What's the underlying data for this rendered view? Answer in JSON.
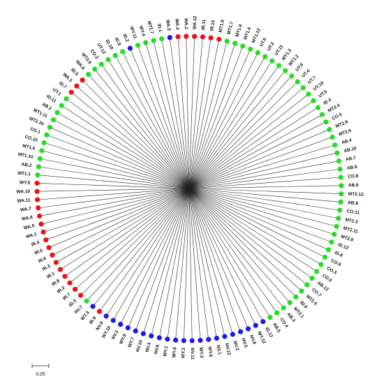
{
  "colors": {
    "green": "#22dd22",
    "red": "#ee1111",
    "blue": "#1a1aee",
    "branch": "#222222"
  },
  "scale_bar": {
    "label": "0.05"
  },
  "leaves": [
    {
      "label": "WA.12",
      "group": "red"
    },
    {
      "label": "IR.11",
      "group": "red"
    },
    {
      "label": "IR.10",
      "group": "red"
    },
    {
      "label": "MT1.8",
      "group": "red"
    },
    {
      "label": "MT1.7",
      "group": "green"
    },
    {
      "label": "MT1.9",
      "group": "green"
    },
    {
      "label": "MT1.4",
      "group": "green"
    },
    {
      "label": "MT1.12",
      "group": "green"
    },
    {
      "label": "UT.6",
      "group": "green"
    },
    {
      "label": "UT.2",
      "group": "green"
    },
    {
      "label": "UT.11",
      "group": "green"
    },
    {
      "label": "MT1.3",
      "group": "green"
    },
    {
      "label": "MT1.2",
      "group": "green"
    },
    {
      "label": "UT.9",
      "group": "green"
    },
    {
      "label": "UT.4",
      "group": "green"
    },
    {
      "label": "UT.7",
      "group": "green"
    },
    {
      "label": "UT.10",
      "group": "green"
    },
    {
      "label": "UT.5",
      "group": "green"
    },
    {
      "label": "ID.4",
      "group": "green"
    },
    {
      "label": "MT2.4",
      "group": "green"
    },
    {
      "label": "CO.5",
      "group": "green"
    },
    {
      "label": "MT2.9",
      "group": "green"
    },
    {
      "label": "MT2.6",
      "group": "green"
    },
    {
      "label": "AB.4",
      "group": "green"
    },
    {
      "label": "AB.10",
      "group": "green"
    },
    {
      "label": "AB.7",
      "group": "green"
    },
    {
      "label": "AB.6",
      "group": "green"
    },
    {
      "label": "CO.8",
      "group": "green"
    },
    {
      "label": "AB.8",
      "group": "green"
    },
    {
      "label": "MT2.12",
      "group": "green"
    },
    {
      "label": "AB.9",
      "group": "green"
    },
    {
      "label": "CO.11",
      "group": "green"
    },
    {
      "label": "MT2.3",
      "group": "green"
    },
    {
      "label": "MT2.11",
      "group": "green"
    },
    {
      "label": "MT2.8",
      "group": "green"
    },
    {
      "label": "ID.12",
      "group": "green"
    },
    {
      "label": "ID.8",
      "group": "green"
    },
    {
      "label": "CO.9",
      "group": "green"
    },
    {
      "label": "CO.3",
      "group": "green"
    },
    {
      "label": "CO.6",
      "group": "green"
    },
    {
      "label": "AB.12",
      "group": "green"
    },
    {
      "label": "CO.7",
      "group": "green"
    },
    {
      "label": "MT2.4",
      "group": "green"
    },
    {
      "label": "ID.6",
      "group": "green"
    },
    {
      "label": "MT2.1",
      "group": "green"
    },
    {
      "label": "AB.3",
      "group": "green"
    },
    {
      "label": "CO.4",
      "group": "green"
    },
    {
      "label": "AB.5",
      "group": "green"
    },
    {
      "label": "ID.12",
      "group": "blue"
    },
    {
      "label": "WY.12",
      "group": "blue"
    },
    {
      "label": "NV.8",
      "group": "blue"
    },
    {
      "label": "NV.5",
      "group": "blue"
    },
    {
      "label": "NV.3",
      "group": "blue"
    },
    {
      "label": "NV.12",
      "group": "blue"
    },
    {
      "label": "NV.1",
      "group": "blue"
    },
    {
      "label": "WY.8",
      "group": "blue"
    },
    {
      "label": "WY.3",
      "group": "blue"
    },
    {
      "label": "NV.11",
      "group": "blue"
    },
    {
      "label": "WY.2",
      "group": "blue"
    },
    {
      "label": "WY.6",
      "group": "blue"
    },
    {
      "label": "WY.1",
      "group": "blue"
    },
    {
      "label": "NV.6",
      "group": "blue"
    },
    {
      "label": "NV.4",
      "group": "blue"
    },
    {
      "label": "NV.10",
      "group": "blue"
    },
    {
      "label": "WY.7",
      "group": "blue"
    },
    {
      "label": "WY.9",
      "group": "blue"
    },
    {
      "label": "NV.2",
      "group": "blue"
    },
    {
      "label": "WY.10",
      "group": "blue"
    },
    {
      "label": "NV.9",
      "group": "blue"
    },
    {
      "label": "IR.9",
      "group": "red"
    },
    {
      "label": "WY.3",
      "group": "blue"
    },
    {
      "label": "NV.7",
      "group": "green"
    },
    {
      "label": "ID.3",
      "group": "red"
    },
    {
      "label": "IR.7",
      "group": "red"
    },
    {
      "label": "IR.2",
      "group": "red"
    },
    {
      "label": "IR.8",
      "group": "red"
    },
    {
      "label": "IR.1",
      "group": "red"
    },
    {
      "label": "IR.3",
      "group": "red"
    },
    {
      "label": "IR.6",
      "group": "red"
    },
    {
      "label": "IR.5",
      "group": "red"
    },
    {
      "label": "IR.4",
      "group": "red"
    },
    {
      "label": "WA.1",
      "group": "red"
    },
    {
      "label": "WA.9",
      "group": "red"
    },
    {
      "label": "WA.8",
      "group": "red"
    },
    {
      "label": "WA.7",
      "group": "red"
    },
    {
      "label": "WA.11",
      "group": "red"
    },
    {
      "label": "WA.10",
      "group": "red"
    },
    {
      "label": "WY.5",
      "group": "red"
    },
    {
      "label": "MT1.1",
      "group": "green"
    },
    {
      "label": "AB.2",
      "group": "green"
    },
    {
      "label": "MT1.10",
      "group": "green"
    },
    {
      "label": "MT1.6",
      "group": "green"
    },
    {
      "label": "CO.10",
      "group": "green"
    },
    {
      "label": "CO.1",
      "group": "green"
    },
    {
      "label": "MT2.10",
      "group": "green"
    },
    {
      "label": "MT1.11",
      "group": "green"
    },
    {
      "label": "AB.1",
      "group": "green"
    },
    {
      "label": "ID.11",
      "group": "green"
    },
    {
      "label": "UT.1",
      "group": "green"
    },
    {
      "label": "ID.7",
      "group": "red"
    },
    {
      "label": "WA.3",
      "group": "red"
    },
    {
      "label": "ID.5",
      "group": "red"
    },
    {
      "label": "WA.6",
      "group": "green"
    },
    {
      "label": "MT2.6",
      "group": "green"
    },
    {
      "label": "CO.2",
      "group": "green"
    },
    {
      "label": "UT.12",
      "group": "green"
    },
    {
      "label": "ID.10",
      "group": "green"
    },
    {
      "label": "ID.9",
      "group": "green"
    },
    {
      "label": "ID.2",
      "group": "blue"
    },
    {
      "label": "WY.11",
      "group": "green"
    },
    {
      "label": "WY.4",
      "group": "green"
    },
    {
      "label": "MT2.7",
      "group": "green"
    },
    {
      "label": "ID.1",
      "group": "green"
    },
    {
      "label": "WA.5",
      "group": "blue"
    },
    {
      "label": "WA.4",
      "group": "red"
    },
    {
      "label": "WA.2",
      "group": "red"
    }
  ]
}
